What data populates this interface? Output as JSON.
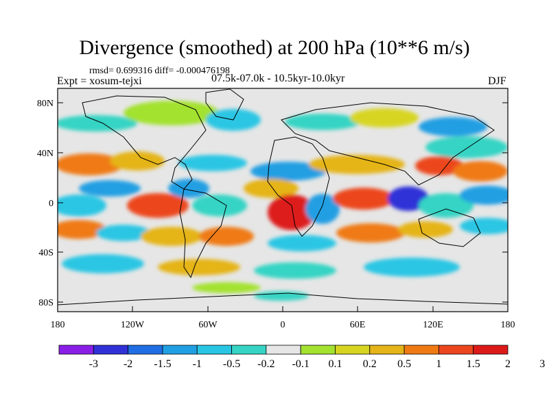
{
  "title": "Divergence (smoothed) at 200 hPa (10**6 m/s)",
  "stats_line": "rmsd= 0.699316  diff= -0.000476198",
  "experiment": "Expt = xosum-tejxi",
  "period": "07.5k-07.0k - 10.5kyr-10.0kyr",
  "season": "DJF",
  "lat_labels": [
    "80N",
    "40N",
    "0",
    "40S",
    "80S"
  ],
  "lon_labels": [
    "180",
    "120W",
    "60W",
    "0",
    "60E",
    "120E",
    "180"
  ],
  "colorbar": {
    "colors": [
      "#8a1ee6",
      "#2f31d7",
      "#1f6ee3",
      "#219fe3",
      "#29c6e4",
      "#36d4c4",
      "#e6e6e6",
      "#a3e22f",
      "#d7d520",
      "#e5b418",
      "#ef7a14",
      "#ec461e",
      "#dd1a1a"
    ],
    "labels": [
      "-3",
      "-2",
      "-1.5",
      "-1",
      "-0.5",
      "-0.2",
      "-0.1",
      "0.1",
      "0.2",
      "0.5",
      "1",
      "1.5",
      "2",
      "3"
    ]
  }
}
